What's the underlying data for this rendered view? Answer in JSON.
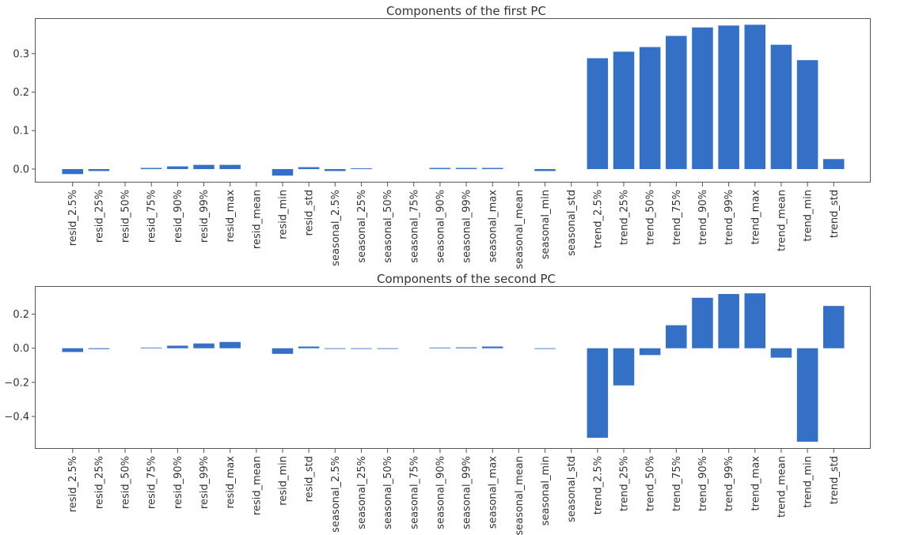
{
  "chart_data": [
    {
      "type": "bar",
      "title": "Components of the first PC",
      "xlabel": "",
      "ylabel": "",
      "ylim": [
        -0.035,
        0.39
      ],
      "yticks": [
        "0.0",
        "0.1",
        "0.2",
        "0.3"
      ],
      "grid": false,
      "bar_color": "#3470c5",
      "categories": [
        "resid_2.5%",
        "resid_25%",
        "resid_50%",
        "resid_75%",
        "resid_90%",
        "resid_99%",
        "resid_max",
        "resid_mean",
        "resid_min",
        "resid_std",
        "seasonal_2.5%",
        "seasonal_25%",
        "seasonal_50%",
        "seasonal_75%",
        "seasonal_90%",
        "seasonal_99%",
        "seasonal_max",
        "seasonal_mean",
        "seasonal_min",
        "seasonal_std",
        "trend_2.5%",
        "trend_25%",
        "trend_50%",
        "trend_75%",
        "trend_90%",
        "trend_99%",
        "trend_max",
        "trend_mean",
        "trend_min",
        "trend_std"
      ],
      "values": [
        -0.013,
        -0.005,
        0.0,
        0.003,
        0.007,
        0.011,
        0.011,
        0.0,
        -0.017,
        0.005,
        -0.005,
        0.002,
        0.0,
        0.0,
        0.003,
        0.003,
        0.003,
        0.0,
        -0.005,
        0.0,
        0.288,
        0.305,
        0.317,
        0.346,
        0.368,
        0.373,
        0.375,
        0.323,
        0.283,
        0.026
      ]
    },
    {
      "type": "bar",
      "title": "Components of the second PC",
      "xlabel": "",
      "ylabel": "",
      "ylim": [
        -0.59,
        0.36
      ],
      "yticks": [
        "−0.4",
        "−0.2",
        "0.0",
        "0.2"
      ],
      "grid": false,
      "bar_color": "#3470c5",
      "categories": [
        "resid_2.5%",
        "resid_25%",
        "resid_50%",
        "resid_75%",
        "resid_90%",
        "resid_99%",
        "resid_max",
        "resid_mean",
        "resid_min",
        "resid_std",
        "seasonal_2.5%",
        "seasonal_25%",
        "seasonal_50%",
        "seasonal_75%",
        "seasonal_90%",
        "seasonal_99%",
        "seasonal_max",
        "seasonal_mean",
        "seasonal_min",
        "seasonal_std",
        "trend_2.5%",
        "trend_25%",
        "trend_50%",
        "trend_75%",
        "trend_90%",
        "trend_99%",
        "trend_max",
        "trend_mean",
        "trend_min",
        "trend_std"
      ],
      "values": [
        -0.022,
        -0.005,
        0.0,
        0.004,
        0.015,
        0.028,
        0.037,
        0.0,
        -0.033,
        0.01,
        -0.004,
        -0.004,
        -0.004,
        0.0,
        0.004,
        0.005,
        0.01,
        0.0,
        -0.004,
        0.0,
        -0.525,
        -0.218,
        -0.04,
        0.135,
        0.296,
        0.318,
        0.322,
        -0.055,
        -0.548,
        0.248
      ]
    }
  ]
}
